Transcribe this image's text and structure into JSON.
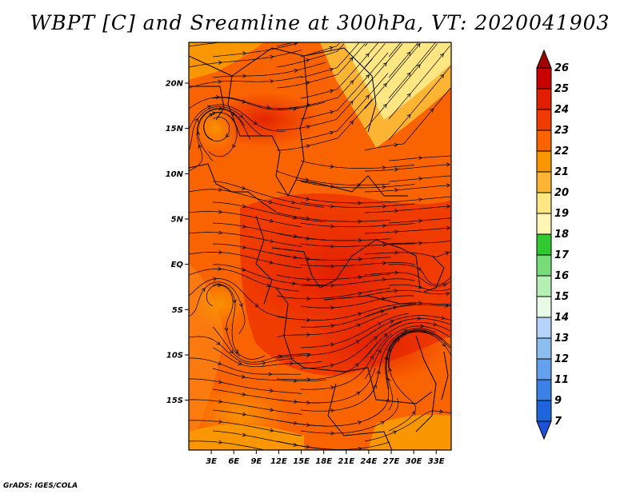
{
  "title": "WBPT [C] and Sreamline at 300hPa, VT: 2020041903",
  "credit": "GrADS: IGES/COLA",
  "map": {
    "lat_range": [
      -20.5,
      24.5
    ],
    "lon_range": [
      0,
      35
    ],
    "lat_ticks": [
      {
        "value": 20,
        "label": "20N"
      },
      {
        "value": 15,
        "label": "15N"
      },
      {
        "value": 10,
        "label": "10N"
      },
      {
        "value": 5,
        "label": "5N"
      },
      {
        "value": 0,
        "label": "EQ"
      },
      {
        "value": -5,
        "label": "5S"
      },
      {
        "value": -10,
        "label": "10S"
      },
      {
        "value": -15,
        "label": "15S"
      }
    ],
    "lon_ticks": [
      {
        "value": 3,
        "label": "3E"
      },
      {
        "value": 6,
        "label": "6E"
      },
      {
        "value": 9,
        "label": "9E"
      },
      {
        "value": 12,
        "label": "12E"
      },
      {
        "value": 15,
        "label": "15E"
      },
      {
        "value": 18,
        "label": "18E"
      },
      {
        "value": 21,
        "label": "21E"
      },
      {
        "value": 24,
        "label": "24E"
      },
      {
        "value": 27,
        "label": "27E"
      },
      {
        "value": 30,
        "label": "30E"
      },
      {
        "value": 33,
        "label": "33E"
      }
    ]
  },
  "colorbar": {
    "levels": [
      {
        "label": "26",
        "color": "#a00000"
      },
      {
        "label": "25",
        "color": "#c80000"
      },
      {
        "label": "24",
        "color": "#e11e00"
      },
      {
        "label": "23",
        "color": "#f03c00"
      },
      {
        "label": "22",
        "color": "#fa6400"
      },
      {
        "label": "21",
        "color": "#fa9600"
      },
      {
        "label": "20",
        "color": "#fcb432"
      },
      {
        "label": "19",
        "color": "#fee682"
      },
      {
        "label": "18",
        "color": "#fff5b4"
      },
      {
        "label": "17",
        "color": "#32c832"
      },
      {
        "label": "16",
        "color": "#78dc78"
      },
      {
        "label": "15",
        "color": "#b4f0b4"
      },
      {
        "label": "14",
        "color": "#e6fae6"
      },
      {
        "label": "13",
        "color": "#b4d2fa"
      },
      {
        "label": "12",
        "color": "#8cbef0"
      },
      {
        "label": "11",
        "color": "#64a0f0"
      },
      {
        "label": "9",
        "color": "#3c82e6"
      },
      {
        "label": "7",
        "color": "#1e64dc"
      }
    ],
    "bottom_color": "#1e50dc"
  }
}
